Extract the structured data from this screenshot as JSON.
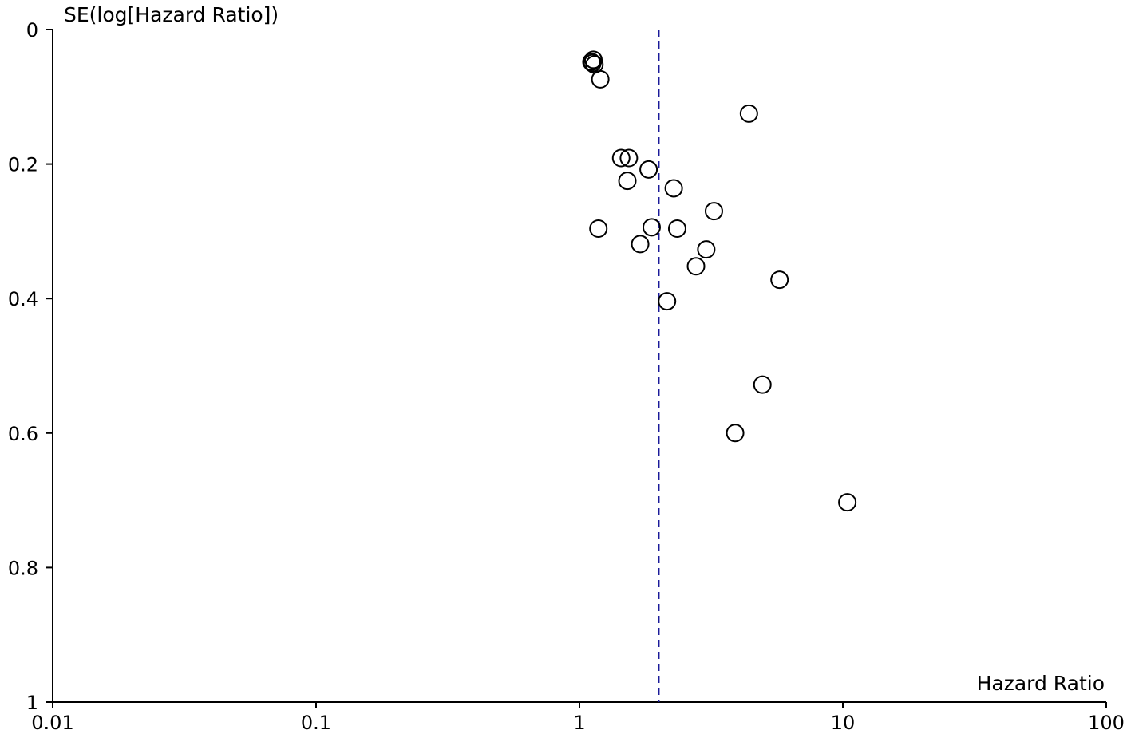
{
  "chart_data": {
    "type": "scatter",
    "subtype": "funnel-plot",
    "title": "",
    "xlabel": "Hazard Ratio",
    "ylabel": "SE(log[Hazard Ratio])",
    "x_scale": "log",
    "xlim": [
      0.01,
      100
    ],
    "x_ticks": [
      0.01,
      0.1,
      1,
      10,
      100
    ],
    "x_tick_labels": [
      "0.01",
      "0.1",
      "1",
      "10",
      "100"
    ],
    "y_reversed": true,
    "ylim": [
      0,
      1
    ],
    "y_ticks": [
      0,
      0.2,
      0.4,
      0.6,
      0.8,
      1
    ],
    "y_tick_labels": [
      "0",
      "0.2",
      "0.4",
      "0.6",
      "0.8",
      "1"
    ],
    "grid": false,
    "pooled_estimate": 2.0,
    "colors": {
      "points": "#000000",
      "reference_line": "#1a1a99",
      "axes": "#000000"
    },
    "points": [
      {
        "hr": 1.11,
        "se": 0.048
      },
      {
        "hr": 1.13,
        "se": 0.045
      },
      {
        "hr": 1.14,
        "se": 0.052
      },
      {
        "hr": 1.12,
        "se": 0.05
      },
      {
        "hr": 1.2,
        "se": 0.074
      },
      {
        "hr": 4.4,
        "se": 0.125
      },
      {
        "hr": 1.44,
        "se": 0.191
      },
      {
        "hr": 1.54,
        "se": 0.191
      },
      {
        "hr": 1.83,
        "se": 0.208
      },
      {
        "hr": 1.52,
        "se": 0.225
      },
      {
        "hr": 2.28,
        "se": 0.236
      },
      {
        "hr": 3.24,
        "se": 0.27
      },
      {
        "hr": 1.18,
        "se": 0.296
      },
      {
        "hr": 1.88,
        "se": 0.294
      },
      {
        "hr": 2.35,
        "se": 0.296
      },
      {
        "hr": 1.7,
        "se": 0.319
      },
      {
        "hr": 3.03,
        "se": 0.327
      },
      {
        "hr": 2.77,
        "se": 0.352
      },
      {
        "hr": 5.75,
        "se": 0.372
      },
      {
        "hr": 2.15,
        "se": 0.404
      },
      {
        "hr": 4.95,
        "se": 0.528
      },
      {
        "hr": 3.9,
        "se": 0.6
      },
      {
        "hr": 10.4,
        "se": 0.703
      }
    ]
  }
}
